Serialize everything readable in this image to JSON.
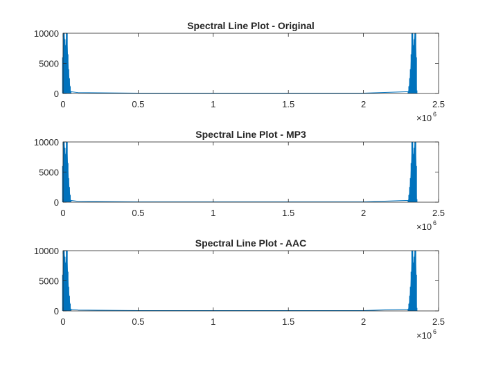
{
  "chart_data": [
    {
      "type": "line",
      "title": "Spectral Line Plot - Original",
      "xlabel": "",
      "ylabel": "",
      "xlim": [
        0,
        2500000
      ],
      "ylim": [
        0,
        10000
      ],
      "x_ticks": [
        0,
        500000,
        1000000,
        1500000,
        2000000,
        2500000
      ],
      "x_tick_labels": [
        "0",
        "0.5",
        "1",
        "1.5",
        "2",
        "2.5"
      ],
      "y_ticks": [
        0,
        5000,
        10000
      ],
      "y_tick_labels": [
        "0",
        "5000",
        "10000"
      ],
      "x_exponent_label": "×10",
      "x_exponent": "6",
      "grid": false,
      "series": [
        {
          "color": "#0072bd",
          "x": [
            0,
            5000,
            10000,
            15000,
            20000,
            25000,
            30000,
            35000,
            40000,
            45000,
            50000,
            100000,
            500000,
            1000000,
            1500000,
            2000000,
            2300000,
            2305000,
            2310000,
            2315000,
            2320000,
            2325000,
            2330000,
            2335000,
            2340000,
            2345000,
            2350000,
            2353000
          ],
          "y": [
            6000,
            10000,
            9000,
            7500,
            8000,
            10000,
            6500,
            4000,
            2500,
            1200,
            300,
            150,
            60,
            50,
            50,
            60,
            300,
            1200,
            2500,
            4000,
            6500,
            10000,
            8000,
            7500,
            9000,
            10000,
            6000,
            500
          ]
        }
      ]
    },
    {
      "type": "line",
      "title": "Spectral Line Plot - MP3",
      "xlabel": "",
      "ylabel": "",
      "xlim": [
        0,
        2500000
      ],
      "ylim": [
        0,
        10000
      ],
      "x_ticks": [
        0,
        500000,
        1000000,
        1500000,
        2000000,
        2500000
      ],
      "x_tick_labels": [
        "0",
        "0.5",
        "1",
        "1.5",
        "2",
        "2.5"
      ],
      "y_ticks": [
        0,
        5000,
        10000
      ],
      "y_tick_labels": [
        "0",
        "5000",
        "10000"
      ],
      "x_exponent_label": "×10",
      "x_exponent": "6",
      "grid": false,
      "series": [
        {
          "color": "#0072bd",
          "x": [
            0,
            5000,
            10000,
            15000,
            20000,
            25000,
            30000,
            35000,
            40000,
            45000,
            50000,
            100000,
            500000,
            1000000,
            1500000,
            2000000,
            2300000,
            2305000,
            2310000,
            2315000,
            2320000,
            2325000,
            2330000,
            2335000,
            2340000,
            2345000,
            2350000,
            2353000
          ],
          "y": [
            6000,
            10000,
            9000,
            7500,
            8000,
            10000,
            6500,
            4000,
            2500,
            1200,
            300,
            150,
            60,
            50,
            50,
            60,
            300,
            1200,
            2500,
            4000,
            6500,
            10000,
            8000,
            7500,
            9000,
            10000,
            6000,
            500
          ]
        }
      ]
    },
    {
      "type": "line",
      "title": "Spectral Line Plot - AAC",
      "xlabel": "",
      "ylabel": "",
      "xlim": [
        0,
        2500000
      ],
      "ylim": [
        0,
        10000
      ],
      "x_ticks": [
        0,
        500000,
        1000000,
        1500000,
        2000000,
        2500000
      ],
      "x_tick_labels": [
        "0",
        "0.5",
        "1",
        "1.5",
        "2",
        "2.5"
      ],
      "y_ticks": [
        0,
        5000,
        10000
      ],
      "y_tick_labels": [
        "0",
        "5000",
        "10000"
      ],
      "x_exponent_label": "×10",
      "x_exponent": "6",
      "grid": false,
      "series": [
        {
          "color": "#0072bd",
          "x": [
            0,
            5000,
            10000,
            15000,
            20000,
            25000,
            30000,
            35000,
            40000,
            45000,
            50000,
            100000,
            500000,
            1000000,
            1500000,
            2000000,
            2300000,
            2305000,
            2310000,
            2315000,
            2320000,
            2325000,
            2330000,
            2335000,
            2340000,
            2345000,
            2350000,
            2353000
          ],
          "y": [
            6000,
            10000,
            9000,
            7500,
            8000,
            10000,
            6500,
            4000,
            2500,
            1200,
            300,
            150,
            60,
            50,
            50,
            60,
            300,
            1200,
            2500,
            4000,
            6500,
            10000,
            8000,
            7500,
            9000,
            10000,
            6000,
            500
          ]
        }
      ]
    }
  ]
}
